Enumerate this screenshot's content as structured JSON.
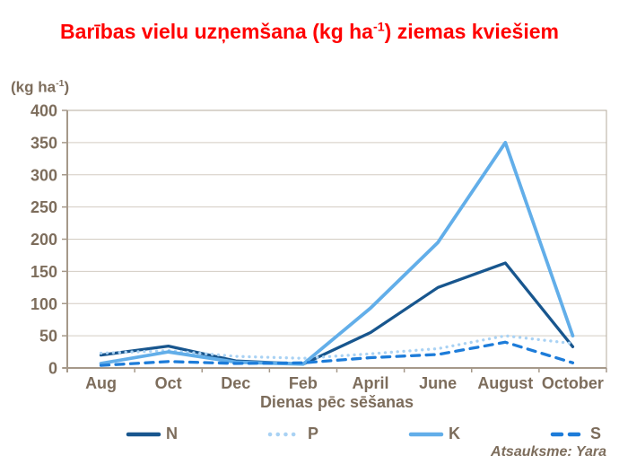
{
  "title": {
    "pre": "Barības vielu uzņemšana (kg ha",
    "sup": "-1",
    "post": ") ziemas kviešiem"
  },
  "y_unit": {
    "pre": "(kg ha",
    "sup": "-1",
    "post": ")"
  },
  "attribution": "Atsauksme: Yara",
  "colors": {
    "title": "#ff0000",
    "axis_text": "#7d6d5c",
    "axis_line": "#a6998a",
    "grid": "#d3ccc2",
    "plot_border": "#b5ab9d",
    "background": "#ffffff",
    "series_n": "#18568e",
    "series_p": "#a9d2f4",
    "series_k": "#62aee9",
    "series_s": "#1d7cd9"
  },
  "chart_data": {
    "type": "line",
    "title": "Barības vielu uzņemšana (kg ha-1) ziemas kviešiem",
    "xlabel": "Dienas pēc sēšanas",
    "ylabel": "(kg ha-1)",
    "categories": [
      "Aug",
      "Oct",
      "Dec",
      "Feb",
      "April",
      "June",
      "August",
      "October"
    ],
    "ylim": [
      0,
      400
    ],
    "ytick_step": 50,
    "grid": "horizontal",
    "legend_position": "bottom",
    "series": [
      {
        "name": "N",
        "style": "solid",
        "color": "#18568e",
        "values": [
          20,
          34,
          11,
          6,
          55,
          125,
          163,
          33
        ]
      },
      {
        "name": "P",
        "style": "dotted",
        "color": "#a9d2f4",
        "values": [
          23,
          27,
          18,
          15,
          22,
          30,
          50,
          38
        ]
      },
      {
        "name": "K",
        "style": "solid",
        "color": "#62aee9",
        "values": [
          7,
          25,
          9,
          6,
          93,
          195,
          350,
          50
        ]
      },
      {
        "name": "S",
        "style": "dashed",
        "color": "#1d7cd9",
        "values": [
          4,
          10,
          7,
          8,
          16,
          21,
          40,
          8
        ]
      }
    ]
  }
}
